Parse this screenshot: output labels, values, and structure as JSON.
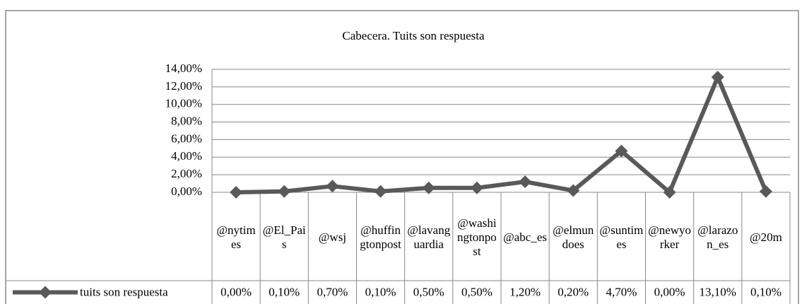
{
  "chart_data": {
    "type": "line",
    "title": "Cabecera. Tuits son respuesta",
    "categories": [
      "@nytimes",
      "@El_Pais",
      "@wsj",
      "@huffingtonpost",
      "@lavanguardia",
      "@washingtonpost",
      "@abc_es",
      "@elmundoes",
      "@suntimes",
      "@newyorker",
      "@larazon_es",
      "@20m"
    ],
    "series": [
      {
        "name": "tuits son respuesta",
        "color": "#595959",
        "values": [
          0,
          0.1,
          0.7,
          0.1,
          0.5,
          0.5,
          1.2,
          0.2,
          4.7,
          0,
          13.1,
          0.1
        ],
        "value_labels": [
          "0,00%",
          "0,10%",
          "0,70%",
          "0,10%",
          "0,50%",
          "0,50%",
          "1,20%",
          "0,20%",
          "4,70%",
          "0,00%",
          "13,10%",
          "0,10%"
        ]
      }
    ],
    "ylim": [
      0,
      14
    ],
    "yticks": [
      {
        "value": 0,
        "label": "0,00%"
      },
      {
        "value": 2,
        "label": "2,00%"
      },
      {
        "value": 4,
        "label": "4,00%"
      },
      {
        "value": 6,
        "label": "6,00%"
      },
      {
        "value": 8,
        "label": "8,00%"
      },
      {
        "value": 10,
        "label": "10,00%"
      },
      {
        "value": 12,
        "label": "12,00%"
      },
      {
        "value": 14,
        "label": "14,00%"
      }
    ],
    "grid": true
  }
}
